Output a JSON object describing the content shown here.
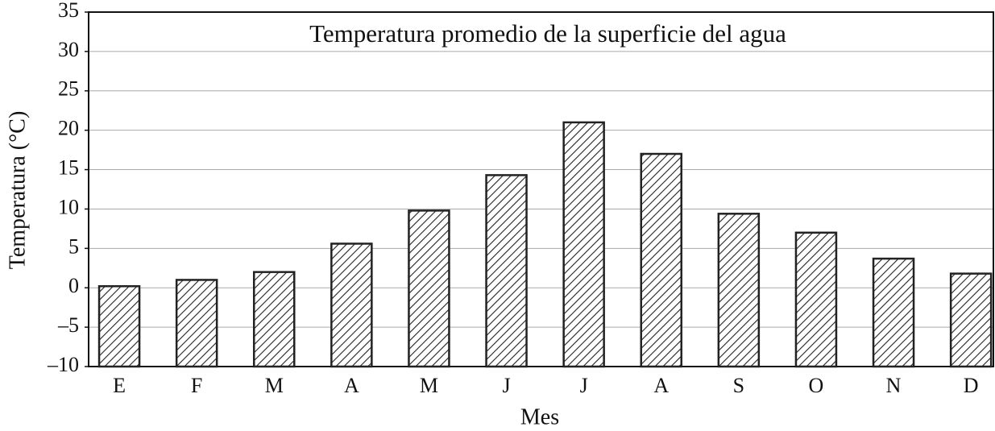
{
  "chart_data": {
    "type": "bar",
    "title": "Temperatura promedio de la superficie del agua",
    "x_label": "Mes",
    "y_label": "Temperatura (°C)",
    "categories": [
      "E",
      "F",
      "M",
      "A",
      "M",
      "J",
      "J",
      "A",
      "S",
      "O",
      "N",
      "D"
    ],
    "values": [
      0.2,
      1,
      2,
      5.6,
      9.8,
      14.3,
      21,
      17,
      9.4,
      7,
      3.7,
      1.8
    ],
    "color": "#222",
    "ylim": [
      -10,
      35
    ],
    "yticks": [
      {
        "value": -10,
        "label": "–10"
      },
      {
        "value": -5,
        "label": "–5"
      },
      0,
      5,
      10,
      15,
      20,
      25,
      30,
      35
    ],
    "grid": true
  }
}
